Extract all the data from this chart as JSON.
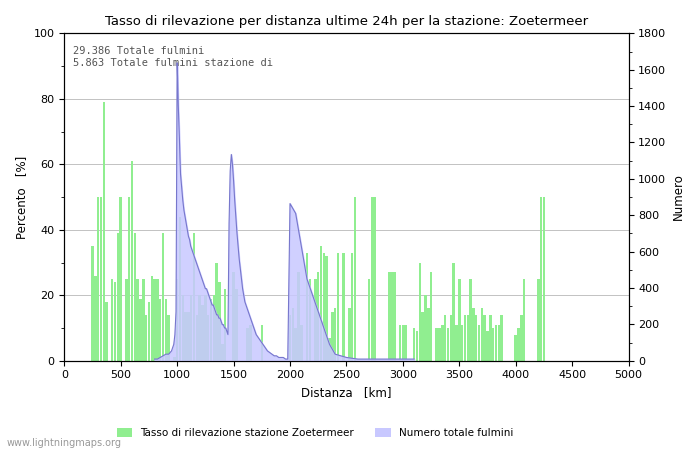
{
  "title": "Tasso di rilevazione per distanza ultime 24h per la stazione: Zoetermeer",
  "xlabel": "Distanza   [km]",
  "ylabel_left": "Percento   [%]",
  "ylabel_right": "Numero",
  "annotation_line1": "29.386 Totale fulmini",
  "annotation_line2": "5.863 Totale fulmini stazione di",
  "xlim": [
    0,
    5000
  ],
  "ylim_left": [
    0,
    100
  ],
  "ylim_right": [
    0,
    1800
  ],
  "xticks": [
    0,
    500,
    1000,
    1500,
    2000,
    2500,
    3000,
    3500,
    4000,
    4500,
    5000
  ],
  "yticks_left": [
    0,
    20,
    40,
    60,
    80,
    100
  ],
  "yticks_right": [
    0,
    200,
    400,
    600,
    800,
    1000,
    1200,
    1400,
    1600,
    1800
  ],
  "legend_label_green": "Tasso di rilevazione stazione Zoetermeer",
  "legend_label_blue": "Numero totale fulmini",
  "watermark": "www.lightningmaps.org",
  "bar_color_green": "#90ee90",
  "bar_color_blue": "#c8c8ff",
  "line_color_blue": "#7777cc",
  "background_color": "#ffffff",
  "grid_color": "#aaaaaa",
  "green_bars": [
    [
      250,
      35
    ],
    [
      275,
      26
    ],
    [
      300,
      50
    ],
    [
      325,
      50
    ],
    [
      350,
      79
    ],
    [
      375,
      18
    ],
    [
      400,
      0
    ],
    [
      425,
      25
    ],
    [
      450,
      24
    ],
    [
      475,
      39
    ],
    [
      500,
      50
    ],
    [
      525,
      0
    ],
    [
      550,
      25
    ],
    [
      575,
      50
    ],
    [
      600,
      61
    ],
    [
      625,
      39
    ],
    [
      650,
      25
    ],
    [
      675,
      19
    ],
    [
      700,
      25
    ],
    [
      725,
      14
    ],
    [
      750,
      18
    ],
    [
      775,
      26
    ],
    [
      800,
      25
    ],
    [
      825,
      25
    ],
    [
      850,
      19
    ],
    [
      875,
      39
    ],
    [
      900,
      19
    ],
    [
      925,
      14
    ],
    [
      950,
      0
    ],
    [
      975,
      1
    ],
    [
      1000,
      25
    ],
    [
      1025,
      44
    ],
    [
      1050,
      20
    ],
    [
      1075,
      15
    ],
    [
      1100,
      15
    ],
    [
      1125,
      20
    ],
    [
      1150,
      39
    ],
    [
      1175,
      14
    ],
    [
      1200,
      20
    ],
    [
      1225,
      17
    ],
    [
      1250,
      20
    ],
    [
      1275,
      14
    ],
    [
      1300,
      19
    ],
    [
      1325,
      20
    ],
    [
      1350,
      30
    ],
    [
      1375,
      24
    ],
    [
      1400,
      5
    ],
    [
      1425,
      22
    ],
    [
      1450,
      0
    ],
    [
      1475,
      0
    ],
    [
      1500,
      27
    ],
    [
      1525,
      22
    ],
    [
      1550,
      0
    ],
    [
      1575,
      0
    ],
    [
      1600,
      0
    ],
    [
      1625,
      10
    ],
    [
      1650,
      11
    ],
    [
      1675,
      0
    ],
    [
      1700,
      0
    ],
    [
      1725,
      0
    ],
    [
      1750,
      11
    ],
    [
      1775,
      0
    ],
    [
      1800,
      0
    ],
    [
      1825,
      0
    ],
    [
      1850,
      0
    ],
    [
      1875,
      0
    ],
    [
      1900,
      0
    ],
    [
      1925,
      0
    ],
    [
      1950,
      0
    ],
    [
      1975,
      0
    ],
    [
      2000,
      14
    ],
    [
      2025,
      16
    ],
    [
      2050,
      10
    ],
    [
      2075,
      27
    ],
    [
      2100,
      11
    ],
    [
      2125,
      0
    ],
    [
      2150,
      33
    ],
    [
      2175,
      25
    ],
    [
      2200,
      0
    ],
    [
      2225,
      25
    ],
    [
      2250,
      27
    ],
    [
      2275,
      35
    ],
    [
      2300,
      33
    ],
    [
      2325,
      32
    ],
    [
      2350,
      7
    ],
    [
      2375,
      15
    ],
    [
      2400,
      16
    ],
    [
      2425,
      33
    ],
    [
      2450,
      0
    ],
    [
      2475,
      33
    ],
    [
      2500,
      0
    ],
    [
      2525,
      16
    ],
    [
      2550,
      33
    ],
    [
      2575,
      50
    ],
    [
      2600,
      0
    ],
    [
      2625,
      0
    ],
    [
      2650,
      0
    ],
    [
      2675,
      0
    ],
    [
      2700,
      25
    ],
    [
      2725,
      50
    ],
    [
      2750,
      50
    ],
    [
      2775,
      0
    ],
    [
      2800,
      0
    ],
    [
      2825,
      0
    ],
    [
      2850,
      0
    ],
    [
      2875,
      27
    ],
    [
      2900,
      27
    ],
    [
      2925,
      27
    ],
    [
      2950,
      0
    ],
    [
      2975,
      11
    ],
    [
      3000,
      11
    ],
    [
      3025,
      11
    ],
    [
      3050,
      0
    ],
    [
      3075,
      0
    ],
    [
      3100,
      10
    ],
    [
      3125,
      9
    ],
    [
      3150,
      30
    ],
    [
      3175,
      15
    ],
    [
      3200,
      20
    ],
    [
      3225,
      16
    ],
    [
      3250,
      27
    ],
    [
      3275,
      0
    ],
    [
      3300,
      10
    ],
    [
      3325,
      10
    ],
    [
      3350,
      11
    ],
    [
      3375,
      14
    ],
    [
      3400,
      10
    ],
    [
      3425,
      14
    ],
    [
      3450,
      30
    ],
    [
      3475,
      11
    ],
    [
      3500,
      25
    ],
    [
      3525,
      11
    ],
    [
      3550,
      14
    ],
    [
      3575,
      14
    ],
    [
      3600,
      25
    ],
    [
      3625,
      16
    ],
    [
      3650,
      14
    ],
    [
      3675,
      11
    ],
    [
      3700,
      16
    ],
    [
      3725,
      14
    ],
    [
      3750,
      9
    ],
    [
      3775,
      14
    ],
    [
      3800,
      10
    ],
    [
      3825,
      11
    ],
    [
      3850,
      11
    ],
    [
      3875,
      14
    ],
    [
      3900,
      0
    ],
    [
      3925,
      0
    ],
    [
      3950,
      0
    ],
    [
      3975,
      0
    ],
    [
      4000,
      8
    ],
    [
      4025,
      10
    ],
    [
      4050,
      14
    ],
    [
      4075,
      25
    ],
    [
      4100,
      0
    ],
    [
      4125,
      0
    ],
    [
      4150,
      0
    ],
    [
      4175,
      0
    ],
    [
      4200,
      25
    ],
    [
      4225,
      50
    ],
    [
      4250,
      50
    ],
    [
      4275,
      0
    ],
    [
      4300,
      0
    ],
    [
      4325,
      0
    ],
    [
      4350,
      0
    ]
  ],
  "blue_fill_x": [
    800,
    825,
    850,
    875,
    900,
    925,
    950,
    960,
    970,
    980,
    990,
    1000,
    1005,
    1010,
    1015,
    1020,
    1025,
    1030,
    1040,
    1050,
    1060,
    1070,
    1080,
    1090,
    1100,
    1110,
    1120,
    1130,
    1140,
    1150,
    1160,
    1170,
    1180,
    1190,
    1200,
    1210,
    1220,
    1230,
    1240,
    1250,
    1260,
    1270,
    1280,
    1290,
    1300,
    1310,
    1320,
    1330,
    1340,
    1350,
    1360,
    1370,
    1380,
    1390,
    1400,
    1410,
    1420,
    1430,
    1440,
    1450,
    1460,
    1470,
    1480,
    1490,
    1500,
    1510,
    1520,
    1530,
    1540,
    1550,
    1560,
    1570,
    1580,
    1590,
    1600,
    1620,
    1640,
    1660,
    1680,
    1700,
    1720,
    1740,
    1760,
    1780,
    1800,
    1820,
    1840,
    1860,
    1880,
    1900,
    1920,
    1940,
    1960,
    1980,
    2000,
    2050,
    2100,
    2150,
    2200,
    2250,
    2300,
    2350,
    2400,
    2500,
    2600,
    2700,
    2800,
    2900,
    3000,
    3100
  ],
  "blue_fill_y": [
    0.5,
    0.5,
    1,
    1.5,
    2,
    2,
    3,
    4,
    5,
    8,
    15,
    91,
    85,
    78,
    73,
    68,
    62,
    57,
    53,
    49,
    46,
    44,
    42,
    40,
    38,
    37,
    35,
    34,
    33,
    32,
    31,
    30,
    29,
    28,
    27,
    26,
    25,
    24,
    23,
    22,
    22,
    21,
    20,
    19,
    18,
    17,
    17,
    16,
    15,
    14,
    14,
    13,
    13,
    12,
    11,
    11,
    10,
    10,
    9,
    8,
    42,
    58,
    63,
    60,
    55,
    49,
    44,
    39,
    35,
    31,
    28,
    25,
    22,
    20,
    18,
    16,
    14,
    12,
    10,
    8,
    7,
    6,
    5,
    4,
    3,
    2.5,
    2,
    1.5,
    1.5,
    1,
    1,
    1,
    0.5,
    0.5,
    48,
    45,
    35,
    25,
    20,
    15,
    10,
    5,
    2,
    1,
    0.5,
    0.5,
    0.5,
    0.5,
    0.5,
    0.5
  ]
}
